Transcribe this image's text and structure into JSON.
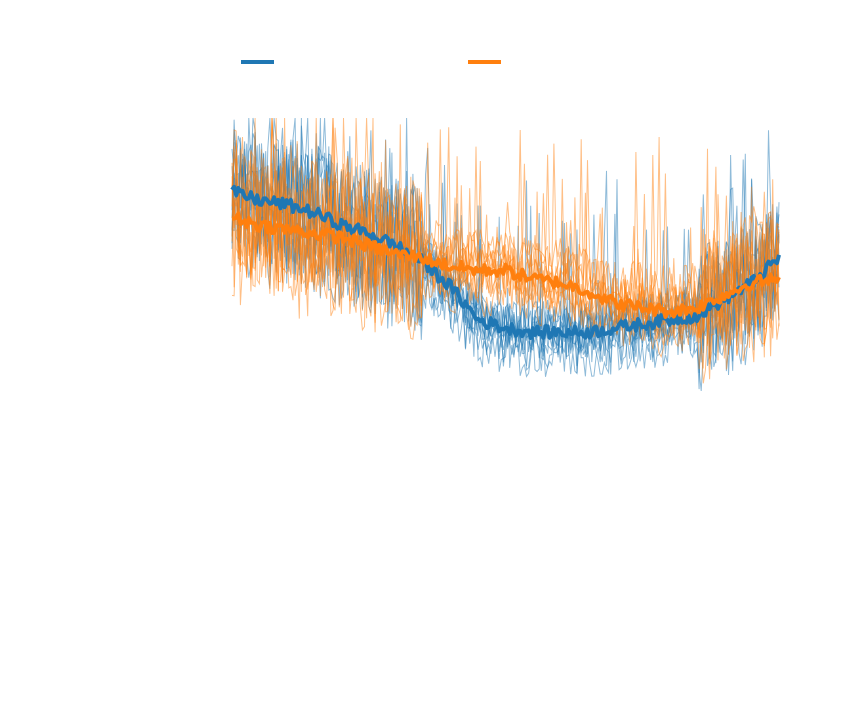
{
  "chart_data": {
    "type": "line",
    "title": "",
    "xlabel": "",
    "ylabel": "",
    "xlim": [
      0,
      1
    ],
    "ylim": [
      0,
      1
    ],
    "grid": false,
    "legend": "top",
    "series": [
      {
        "name": "",
        "color": "#1f77b4",
        "role": "mean",
        "x": [
          0.0,
          0.05,
          0.1,
          0.15,
          0.2,
          0.25,
          0.3,
          0.35,
          0.4,
          0.45,
          0.5,
          0.55,
          0.6,
          0.65,
          0.7,
          0.75,
          0.8,
          0.85,
          0.9,
          0.95,
          1.0
        ],
        "y": [
          0.82,
          0.8,
          0.79,
          0.77,
          0.74,
          0.72,
          0.69,
          0.65,
          0.59,
          0.51,
          0.49,
          0.48,
          0.48,
          0.48,
          0.49,
          0.5,
          0.51,
          0.52,
          0.56,
          0.6,
          0.66
        ]
      },
      {
        "name": "",
        "color": "#ff7f0e",
        "role": "mean",
        "x": [
          0.0,
          0.05,
          0.1,
          0.15,
          0.2,
          0.25,
          0.3,
          0.35,
          0.4,
          0.45,
          0.5,
          0.55,
          0.6,
          0.65,
          0.7,
          0.75,
          0.8,
          0.85,
          0.9,
          0.95,
          1.0
        ],
        "y": [
          0.76,
          0.74,
          0.73,
          0.72,
          0.71,
          0.69,
          0.67,
          0.66,
          0.64,
          0.63,
          0.63,
          0.61,
          0.6,
          0.58,
          0.55,
          0.54,
          0.53,
          0.54,
          0.57,
          0.6,
          0.61
        ]
      }
    ],
    "runs_per_series": 10
  }
}
